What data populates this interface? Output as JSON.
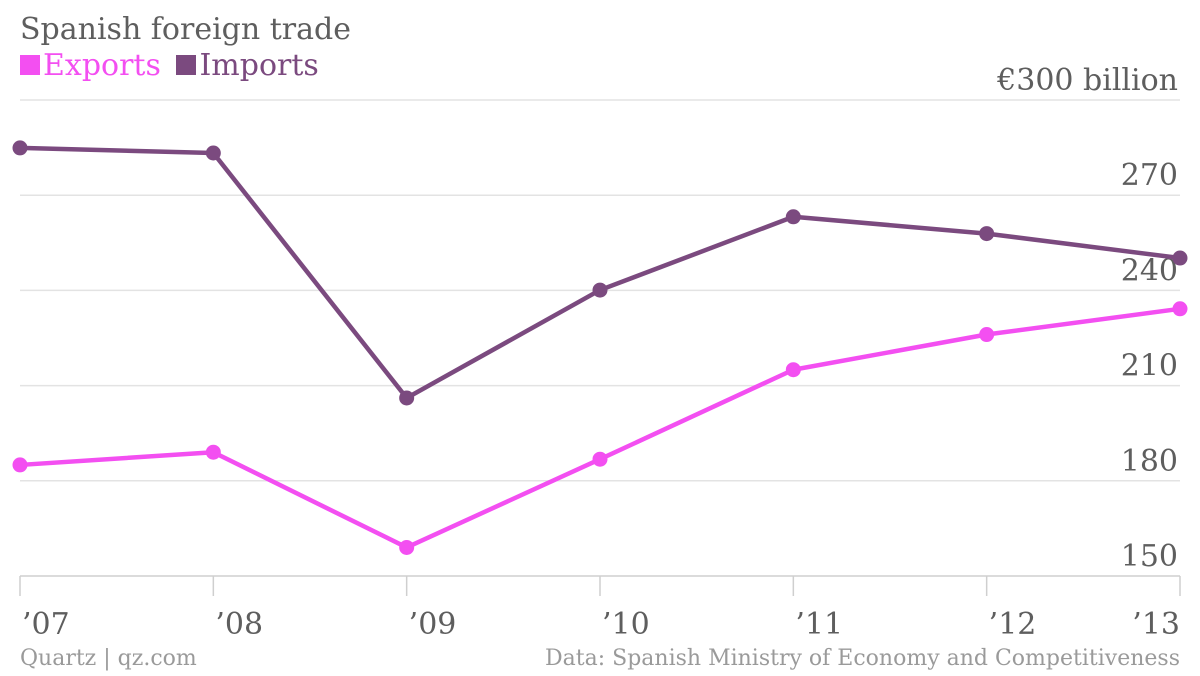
{
  "chart_data": {
    "type": "line",
    "title": "Spanish foreign trade",
    "categories": [
      "’07",
      "’08",
      "’09",
      "’10",
      "’11",
      "’12",
      "’13"
    ],
    "series": [
      {
        "name": "Exports",
        "color": "#f34ff1",
        "values": [
          185,
          189,
          159,
          186.8,
          215,
          226.1,
          234.2
        ]
      },
      {
        "name": "Imports",
        "color": "#7b4a7f",
        "values": [
          284.9,
          283.3,
          206.1,
          240.1,
          263.2,
          257.9,
          250.2
        ]
      }
    ],
    "y_ticks": [
      150,
      180,
      210,
      240,
      270,
      300
    ],
    "y_tick_labels": [
      "150",
      "180",
      "210",
      "240",
      "270",
      "€300 billion"
    ],
    "ylim": [
      150,
      300
    ],
    "grid": true,
    "legend": "top-left"
  },
  "footer": {
    "source_left": "Quartz | qz.com",
    "source_right": "Data: Spanish Ministry of Economy and Competitiveness"
  }
}
